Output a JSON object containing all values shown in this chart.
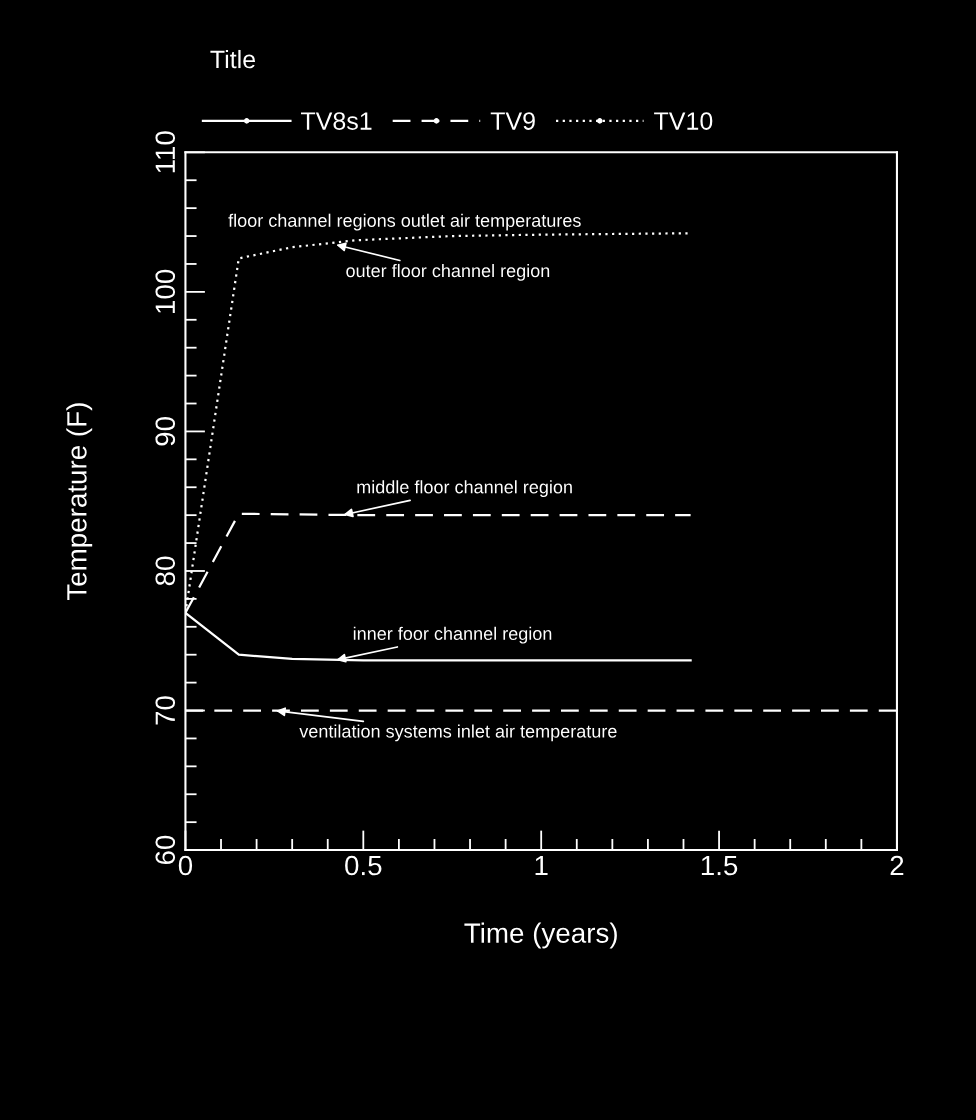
{
  "chart_data": {
    "type": "line",
    "title": "Title",
    "xlabel": "Time (years)",
    "ylabel": "Temperature (F)",
    "xlim": [
      0,
      2
    ],
    "xticks": [
      0,
      0.5,
      1,
      1.5,
      2
    ],
    "ylim": [
      60,
      110
    ],
    "yticks": [
      60,
      70,
      80,
      90,
      100,
      110
    ],
    "grid": false,
    "legend": "top left",
    "marker": "none",
    "series": [
      {
        "name": "TV8s1",
        "color": "#ffffff",
        "line_style": "solid",
        "x": [
          0,
          0.15,
          0.3,
          0.5,
          1.0,
          1.42
        ],
        "values": [
          77.0,
          74.0,
          73.7,
          73.6,
          73.6,
          73.6
        ]
      },
      {
        "name": "TV9",
        "color": "#ffffff",
        "line_style": "dashed",
        "x": [
          0,
          0.15,
          0.5,
          1.0,
          1.42
        ],
        "values": [
          77.0,
          84.1,
          84.0,
          84.0,
          84.0
        ]
      },
      {
        "name": "TV10",
        "color": "#ffffff",
        "line_style": "dotted",
        "x": [
          0,
          0.15,
          0.3,
          0.48,
          0.75,
          1.0,
          1.42
        ],
        "values": [
          77.0,
          102.4,
          103.2,
          103.7,
          104.0,
          104.1,
          104.2
        ]
      },
      {
        "color": "#ffffff",
        "line_style": "dashed",
        "x": [
          0,
          2
        ],
        "values": [
          70,
          70
        ]
      }
    ],
    "annotations": [
      "floor channel regions outlet air temperatures",
      {
        "text": "outer floor channel region",
        "x": 0.42,
        "y": 103.4
      },
      {
        "text": "middle floor channel region",
        "x": 0.44,
        "y": 84.0
      },
      {
        "text": "inner foor channel region",
        "x": 0.42,
        "y": 73.6
      },
      {
        "text": "ventilation systems inlet air temperature",
        "x": 0.25,
        "y": 70
      }
    ]
  }
}
